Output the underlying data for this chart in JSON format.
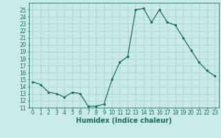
{
  "x": [
    0,
    1,
    2,
    3,
    4,
    5,
    6,
    7,
    8,
    9,
    10,
    11,
    12,
    13,
    14,
    15,
    16,
    17,
    18,
    19,
    20,
    21,
    22,
    23
  ],
  "y": [
    14.7,
    14.3,
    13.2,
    13.0,
    12.5,
    13.2,
    13.0,
    11.2,
    11.2,
    11.5,
    15.0,
    17.5,
    18.3,
    25.0,
    25.2,
    23.2,
    25.0,
    23.2,
    22.8,
    21.0,
    19.2,
    17.5,
    16.3,
    15.5
  ],
  "line_color": "#1a6b5a",
  "marker": "o",
  "marker_size": 2.0,
  "bg_color": "#c8eae8",
  "grid_color": "#aacccc",
  "xlabel": "Humidex (Indice chaleur)",
  "ylim": [
    11,
    26
  ],
  "xlim": [
    -0.5,
    23.5
  ],
  "yticks": [
    11,
    12,
    13,
    14,
    15,
    16,
    17,
    18,
    19,
    20,
    21,
    22,
    23,
    24,
    25
  ],
  "xticks": [
    0,
    1,
    2,
    3,
    4,
    5,
    6,
    7,
    8,
    9,
    10,
    11,
    12,
    13,
    14,
    15,
    16,
    17,
    18,
    19,
    20,
    21,
    22,
    23
  ],
  "tick_fontsize": 5.5,
  "xlabel_fontsize": 7.0,
  "linewidth": 0.9
}
